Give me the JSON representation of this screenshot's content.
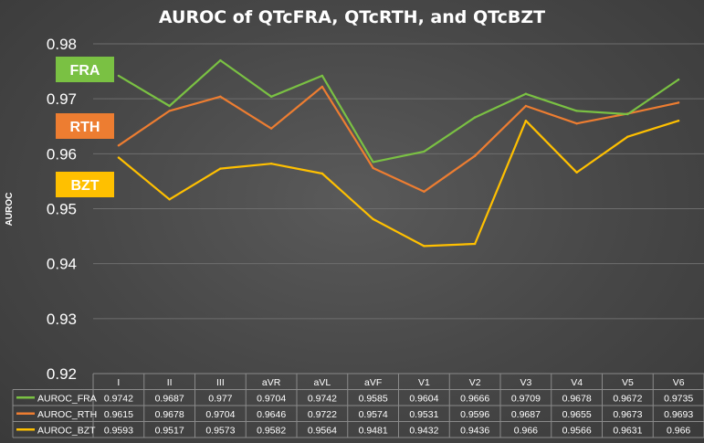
{
  "chart_data": {
    "type": "line",
    "title": "AUROC of QTcFRA, QTcRTH, and QTcBZT",
    "ylabel": "AUROC",
    "xlabel": "",
    "ylim": [
      0.92,
      0.98
    ],
    "yticks": [
      "0.92",
      "0.93",
      "0.94",
      "0.95",
      "0.96",
      "0.97",
      "0.98"
    ],
    "grid": true,
    "legend_placement": "data-table-below",
    "categories": [
      "I",
      "II",
      "III",
      "aVR",
      "aVL",
      "aVF",
      "V1",
      "V2",
      "V3",
      "V4",
      "V5",
      "V6"
    ],
    "series": [
      {
        "name": "AUROC_FRA",
        "color": "#7ac143",
        "badge": "FRA",
        "values": [
          0.9742,
          0.9687,
          0.977,
          0.9704,
          0.9742,
          0.9585,
          0.9604,
          0.9666,
          0.9709,
          0.9678,
          0.9672,
          0.9735
        ],
        "labels": [
          "0.9742",
          "0.9687",
          "0.977",
          "0.9704",
          "0.9742",
          "0.9585",
          "0.9604",
          "0.9666",
          "0.9709",
          "0.9678",
          "0.9672",
          "0.9735"
        ]
      },
      {
        "name": "AUROC_RTH",
        "color": "#ed7d31",
        "badge": "RTH",
        "values": [
          0.9615,
          0.9678,
          0.9704,
          0.9646,
          0.9722,
          0.9574,
          0.9531,
          0.9596,
          0.9687,
          0.9655,
          0.9673,
          0.9693
        ],
        "labels": [
          "0.9615",
          "0.9678",
          "0.9704",
          "0.9646",
          "0.9722",
          "0.9574",
          "0.9531",
          "0.9596",
          "0.9687",
          "0.9655",
          "0.9673",
          "0.9693"
        ]
      },
      {
        "name": "AUROC_BZT",
        "color": "#ffc000",
        "badge": "BZT",
        "values": [
          0.9593,
          0.9517,
          0.9573,
          0.9582,
          0.9564,
          0.9481,
          0.9432,
          0.9436,
          0.966,
          0.9566,
          0.9631,
          0.966
        ],
        "labels": [
          "0.9593",
          "0.9517",
          "0.9573",
          "0.9582",
          "0.9564",
          "0.9481",
          "0.9432",
          "0.9436",
          "0.966",
          "0.9566",
          "0.9631",
          "0.966"
        ]
      }
    ]
  }
}
